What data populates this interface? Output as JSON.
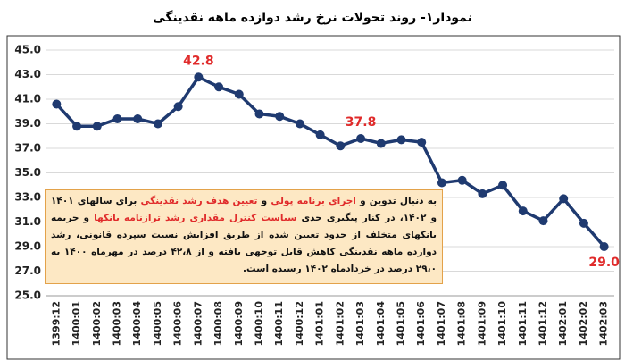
{
  "chart_data": {
    "type": "line",
    "title": "نمودار۱- روند تحولات نرخ رشد دوازده ماهه نقدینگی",
    "categories": [
      "1399:12",
      "1400:01",
      "1400:02",
      "1400:03",
      "1400:04",
      "1400:05",
      "1400:06",
      "1400:07",
      "1400:08",
      "1400:09",
      "1400:10",
      "1400:11",
      "1400:12",
      "1401:01",
      "1401:02",
      "1401:03",
      "1401:04",
      "1401:05",
      "1401:06",
      "1401:07",
      "1401:08",
      "1401:09",
      "1401:10",
      "1401:11",
      "1401:12",
      "1402:01",
      "1402:02",
      "1402:03"
    ],
    "series": [
      {
        "color": "#1f3a70",
        "values": [
          40.6,
          38.8,
          38.8,
          39.4,
          39.4,
          39.0,
          40.4,
          42.8,
          42.0,
          41.4,
          39.8,
          39.6,
          39.0,
          38.1,
          37.2,
          37.8,
          37.4,
          37.7,
          37.5,
          34.2,
          34.4,
          33.3,
          34.0,
          31.9,
          31.1,
          32.9,
          30.9,
          29.0
        ],
        "value_labels": [
          null,
          null,
          null,
          null,
          null,
          null,
          null,
          "42.8",
          null,
          null,
          null,
          null,
          null,
          null,
          null,
          "37.8",
          null,
          null,
          null,
          null,
          null,
          null,
          null,
          null,
          null,
          null,
          null,
          "29.0"
        ]
      }
    ],
    "value_label_color": "#e02b2b",
    "ylim": [
      25,
      45
    ],
    "yticks": [
      {
        "value": 25,
        "label": "25.0"
      },
      {
        "value": 27,
        "label": "27.0"
      },
      {
        "value": 29,
        "label": "29.0"
      },
      {
        "value": 31,
        "label": "31.0"
      },
      {
        "value": 33,
        "label": "33.0"
      },
      {
        "value": 35,
        "label": "35.0"
      },
      {
        "value": 37,
        "label": "37.0"
      },
      {
        "value": 39,
        "label": "39.0"
      },
      {
        "value": 41,
        "label": "41.0"
      },
      {
        "value": 43,
        "label": "43.0"
      },
      {
        "value": 45,
        "label": "45.0"
      }
    ],
    "grid": true,
    "annotation": {
      "segments": [
        {
          "text": "به دنبال تدوین و ",
          "color": "#111111"
        },
        {
          "text": "اجرای برنامه پولی",
          "color": "#e02b2b"
        },
        {
          "text": " و ",
          "color": "#111111"
        },
        {
          "text": "تعیین هدف رشد نقدینگی",
          "color": "#e02b2b"
        },
        {
          "text": " برای سالهای ۱۴۰۱ و ۱۴۰۲، در کنار پیگیری جدی ",
          "color": "#111111"
        },
        {
          "text": "سیاست کنترل مقداری رشد ترازنامه بانکها",
          "color": "#e02b2b"
        },
        {
          "text": " و جریمه بانکهای متخلف از حدود تعیین شده از طریق افزایش نسبت سپرده قانونی، رشد دوازده ماهه نقدینگی کاهش قابل توجهی یافته و از ۴۲،۸ درصد در مهرماه ۱۴۰۰ به ۲۹،۰ درصد در خردادماه ۱۴۰۲ رسیده است.",
          "color": "#111111"
        }
      ]
    }
  }
}
